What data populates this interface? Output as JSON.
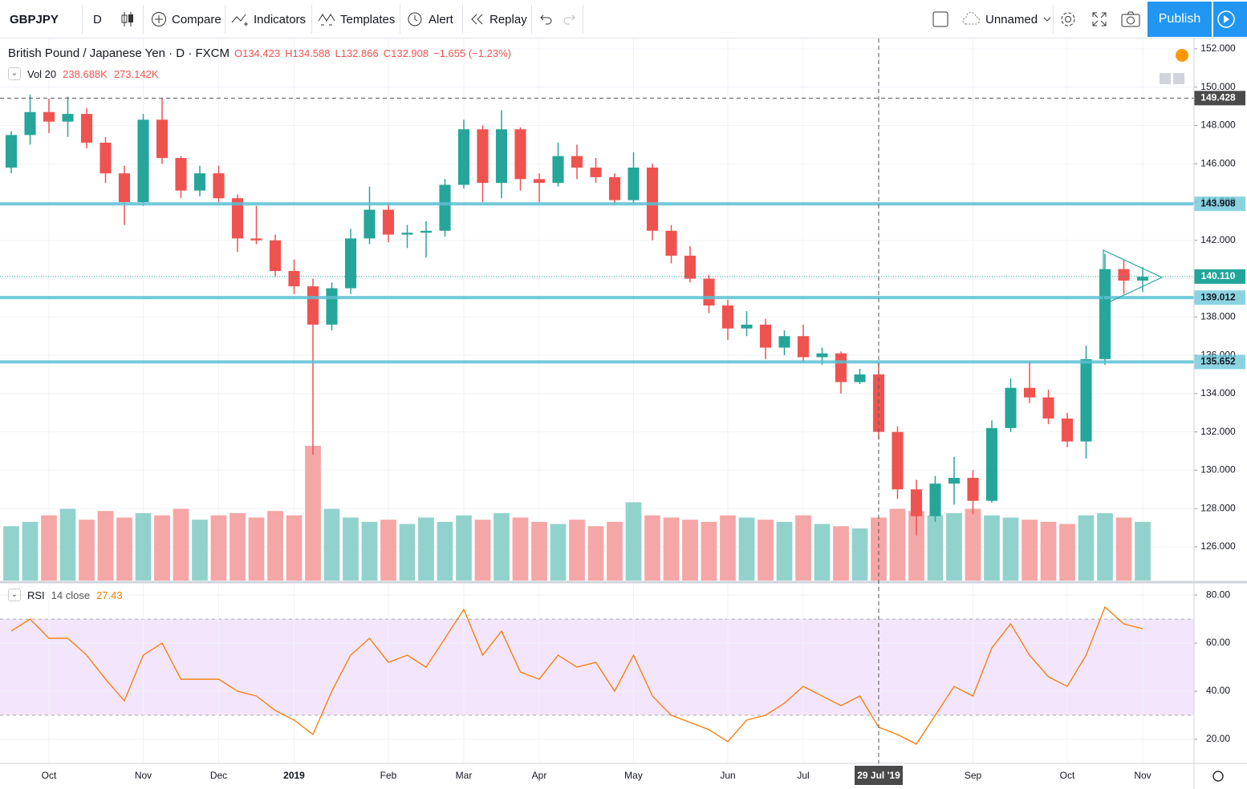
{
  "toolbar": {
    "symbol": "GBPJPY",
    "interval": "D",
    "compare": "Compare",
    "indicators": "Indicators",
    "templates": "Templates",
    "alert": "Alert",
    "replay": "Replay",
    "layout": "Unnamed",
    "publish": "Publish"
  },
  "legend": {
    "title": "British Pound / Japanese Yen · D · FXCM",
    "open": "O134.423",
    "high": "H134.588",
    "low": "L132.866",
    "close": "C132.908",
    "change": "−1.655 (−1.23%)"
  },
  "chart_data": [
    {
      "type": "candlestick",
      "categories": [
        null,
        null,
        "Oct",
        null,
        null,
        null,
        null,
        "Nov",
        null,
        null,
        null,
        "Dec",
        null,
        null,
        null,
        "2019",
        null,
        null,
        null,
        null,
        "Feb",
        null,
        null,
        null,
        "Mar",
        null,
        null,
        null,
        "Apr",
        null,
        null,
        null,
        null,
        "May",
        null,
        null,
        null,
        null,
        "Jun",
        null,
        null,
        null,
        "Jul",
        null,
        null,
        null,
        "29 Jul '19",
        null,
        null,
        null,
        null,
        "Sep",
        null,
        null,
        null,
        null,
        "Oct",
        null,
        null,
        null,
        "Nov"
      ],
      "open": [
        145.8,
        147.5,
        148.7,
        148.2,
        148.6,
        147.1,
        145.5,
        144.0,
        148.3,
        146.3,
        144.6,
        145.5,
        144.2,
        142.1,
        142.0,
        140.4,
        139.6,
        137.6,
        139.5,
        142.1,
        143.6,
        142.3,
        142.4,
        142.5,
        144.9,
        147.8,
        145.0,
        147.8,
        145.2,
        145.0,
        146.4,
        145.8,
        145.3,
        144.1,
        145.8,
        142.5,
        141.2,
        140.0,
        138.6,
        137.4,
        137.6,
        136.4,
        137.0,
        135.9,
        136.1,
        134.6,
        135.0,
        132.0,
        129.0,
        127.6,
        129.3,
        129.6,
        128.4,
        132.2,
        134.3,
        133.8,
        132.7,
        131.5,
        135.8,
        140.5,
        139.9
      ],
      "high": [
        147.7,
        149.6,
        149.4,
        149.5,
        148.9,
        147.4,
        145.9,
        148.6,
        149.4,
        146.4,
        145.9,
        145.9,
        144.4,
        143.8,
        142.3,
        141.0,
        140.0,
        139.8,
        142.6,
        144.8,
        143.9,
        142.8,
        143.0,
        145.2,
        148.3,
        148.0,
        148.8,
        147.9,
        145.5,
        147.1,
        147.0,
        146.3,
        145.5,
        146.6,
        146.0,
        142.8,
        141.7,
        140.2,
        138.9,
        138.3,
        137.9,
        137.3,
        137.6,
        136.4,
        136.2,
        135.3,
        135.6,
        132.3,
        129.5,
        129.7,
        130.7,
        130.0,
        132.6,
        134.8,
        135.7,
        134.2,
        133.0,
        136.5,
        141.3,
        141.0,
        140.6
      ],
      "low": [
        145.5,
        147.0,
        147.6,
        147.4,
        146.8,
        145.0,
        142.8,
        143.8,
        146.0,
        144.2,
        144.3,
        144.0,
        141.4,
        141.8,
        140.1,
        139.2,
        130.8,
        137.3,
        139.2,
        141.8,
        141.9,
        141.6,
        141.1,
        142.2,
        144.7,
        144.0,
        144.2,
        144.6,
        144.0,
        144.8,
        145.2,
        145.0,
        143.9,
        143.9,
        142.0,
        140.8,
        139.8,
        138.2,
        136.8,
        137.0,
        135.8,
        136.0,
        135.6,
        135.5,
        134.0,
        134.5,
        131.6,
        128.5,
        126.6,
        127.3,
        128.2,
        127.7,
        128.3,
        132.0,
        133.5,
        132.4,
        131.2,
        130.6,
        135.5,
        139.2,
        139.3
      ],
      "close": [
        147.5,
        148.7,
        148.2,
        148.6,
        147.1,
        145.5,
        144.0,
        148.3,
        146.3,
        144.6,
        145.5,
        144.2,
        142.1,
        142.0,
        140.4,
        139.6,
        137.6,
        139.5,
        142.1,
        143.6,
        142.3,
        142.4,
        142.5,
        144.9,
        147.8,
        145.0,
        147.8,
        145.2,
        145.0,
        146.4,
        145.8,
        145.3,
        144.1,
        145.8,
        142.5,
        141.2,
        140.0,
        138.6,
        137.4,
        137.6,
        136.4,
        137.0,
        135.9,
        136.1,
        134.6,
        135.0,
        132.0,
        129.0,
        127.6,
        129.3,
        129.6,
        128.4,
        132.2,
        134.3,
        133.8,
        132.7,
        131.5,
        135.8,
        140.5,
        139.9,
        140.1
      ],
      "up_color": "#26a69a",
      "down_color": "#ef5350",
      "volume": {
        "name": "Vol 20",
        "labels": [
          "238.688K",
          "273.142K"
        ],
        "up_color": "#92d2cc",
        "down_color": "#f5a6a6",
        "values": [
          250,
          270,
          300,
          330,
          280,
          320,
          290,
          310,
          300,
          330,
          280,
          300,
          310,
          290,
          320,
          300,
          620,
          330,
          290,
          270,
          280,
          260,
          290,
          270,
          300,
          280,
          310,
          290,
          270,
          260,
          280,
          250,
          270,
          360,
          300,
          290,
          280,
          270,
          300,
          290,
          280,
          270,
          300,
          260,
          250,
          240,
          290,
          330,
          320,
          300,
          310,
          330,
          300,
          290,
          280,
          270,
          260,
          300,
          310,
          290,
          270
        ]
      },
      "ylim": [
        124.24,
        152.54
      ],
      "yticks": [
        {
          "value": 126,
          "label": "126.000"
        },
        {
          "value": 128,
          "label": "128.000"
        },
        {
          "value": 130,
          "label": "130.000"
        },
        {
          "value": 132,
          "label": "132.000"
        },
        {
          "value": 134,
          "label": "134.000"
        },
        {
          "value": 136,
          "label": "136.000"
        },
        {
          "value": 138,
          "label": "138.000"
        },
        {
          "value": 140,
          "label": "140.000"
        },
        {
          "value": 142,
          "label": "142.000"
        },
        {
          "value": 144,
          "label": "144.000"
        },
        {
          "value": 146,
          "label": "146.000"
        },
        {
          "value": 148,
          "label": "148.000"
        },
        {
          "value": 150,
          "label": "150.000"
        },
        {
          "value": 152,
          "label": "152.000"
        }
      ],
      "grid": true,
      "lines": [
        {
          "value": 143.908,
          "label": "143.908",
          "color": "#5bc0d4"
        },
        {
          "value": 139.012,
          "label": "139.012",
          "color": "#5bc0d4"
        },
        {
          "value": 135.652,
          "label": "135.652",
          "color": "#5bc0d4"
        }
      ],
      "crosshair": {
        "value": 149.428,
        "label": "149.428",
        "color": "#4a4a4a"
      },
      "last_price": {
        "value": 140.11,
        "label": "140.110",
        "color": "#22a59a"
      }
    },
    {
      "type": "line",
      "series": [
        {
          "name": "RSI",
          "params": "14 close",
          "value_label": "27.43",
          "color": "#f57c00",
          "values": [
            65,
            70,
            62,
            62,
            55,
            45,
            36,
            55,
            60,
            45,
            45,
            45,
            40,
            38,
            32,
            28,
            22,
            40,
            55,
            62,
            52,
            55,
            50,
            62,
            74,
            55,
            65,
            48,
            45,
            55,
            50,
            52,
            40,
            55,
            38,
            30,
            27,
            24,
            19,
            28,
            30,
            35,
            42,
            38,
            34,
            38,
            25,
            22,
            18,
            30,
            42,
            38,
            58,
            68,
            55,
            46,
            42,
            55,
            75,
            68,
            66
          ]
        }
      ],
      "ylim": [
        10,
        84.7
      ],
      "yticks": [
        {
          "value": 20,
          "label": "20.00"
        },
        {
          "value": 40,
          "label": "40.00"
        },
        {
          "value": 60,
          "label": "60.00"
        },
        {
          "value": 80,
          "label": "80.00"
        }
      ],
      "band": [
        30,
        70
      ],
      "band_color": "#f3e5fb"
    }
  ]
}
